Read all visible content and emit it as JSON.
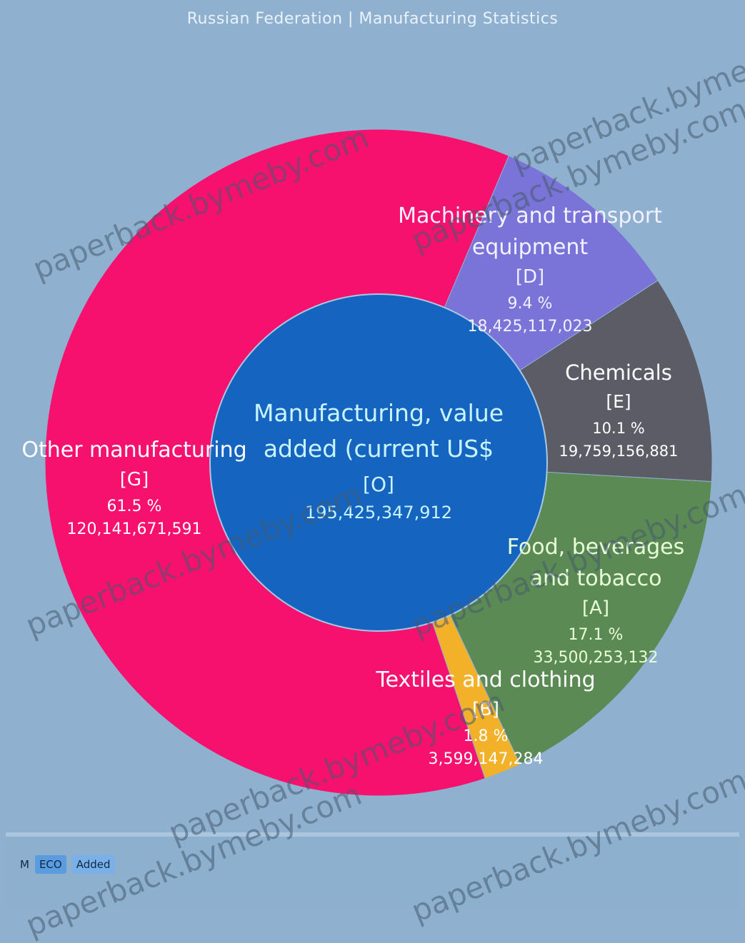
{
  "header": {
    "title": "Russian Federation | Manufacturing Statistics"
  },
  "footer": {
    "item_a": "M",
    "item_b": "ECO",
    "item_c": "Added"
  },
  "watermarks": [
    "paperback.bymeby.com",
    "paperback.bymeby.com",
    "paperback.bymeby.com",
    "paperback.bymeby.com",
    "paperback.bymeby.com",
    "paperback.bymeby.com",
    "paperback.bymeby.com",
    "paperback.bymeby.com"
  ],
  "chart_data": {
    "type": "pie",
    "title": "Russian Federation | Manufacturing Statistics",
    "center": {
      "label_line1": "Manufacturing, value",
      "label_line2": "added (current US$",
      "code": "[O]",
      "value": "195,425,347,912"
    },
    "slices": [
      {
        "name_lines": [
          "Other manufacturing"
        ],
        "code": "[G]",
        "percent": "61.5 %",
        "value": "120,141,671,591",
        "share": 61.5,
        "color": "#f7116f"
      },
      {
        "name_lines": [
          "Machinery and transport",
          "equipment"
        ],
        "code": "[D]",
        "percent": "9.4 %",
        "value": "18,425,117,023",
        "share": 9.4,
        "color": "#7b74d8"
      },
      {
        "name_lines": [
          "Chemicals"
        ],
        "code": "[E]",
        "percent": "10.1 %",
        "value": "19,759,156,881",
        "share": 10.1,
        "color": "#5c5c66"
      },
      {
        "name_lines": [
          "Food, beverages",
          "and tobacco"
        ],
        "code": "[A]",
        "percent": "17.1 %",
        "value": "33,500,253,132",
        "share": 17.1,
        "color": "#5b8a54"
      },
      {
        "name_lines": [
          "Textiles and clothing"
        ],
        "code": "[B]",
        "percent": "1.8 %",
        "value": "3,599,147,284",
        "share": 1.8,
        "color": "#f3b12a"
      }
    ],
    "colors": {
      "center": "#1565c0",
      "background": "#8fb1cf"
    }
  }
}
